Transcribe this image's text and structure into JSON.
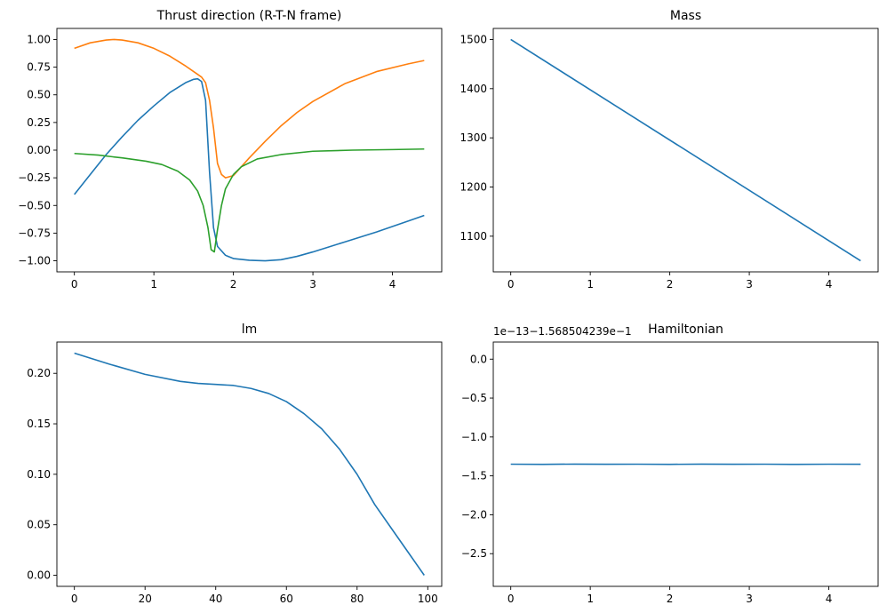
{
  "figure": {
    "colors": {
      "c0": "#1f77b4",
      "c1": "#ff7f0e",
      "c2": "#2ca02c"
    }
  },
  "chart_data": [
    {
      "type": "line",
      "title": "Thrust direction (R-T-N frame)",
      "xlim": [
        -0.22,
        4.62
      ],
      "ylim": [
        -1.1,
        1.1
      ],
      "xticks": [
        0,
        1,
        2,
        3,
        4
      ],
      "xtick_labels": [
        "0",
        "1",
        "2",
        "3",
        "4"
      ],
      "yticks": [
        -1.0,
        -0.75,
        -0.5,
        -0.25,
        0.0,
        0.25,
        0.5,
        0.75,
        1.0
      ],
      "ytick_labels": [
        "−1.00",
        "−0.75",
        "−0.50",
        "−0.25",
        "0.00",
        "0.25",
        "0.50",
        "0.75",
        "1.00"
      ],
      "series": [
        {
          "color": "#1f77b4",
          "x": [
            0,
            0.2,
            0.4,
            0.6,
            0.8,
            1.0,
            1.2,
            1.4,
            1.5,
            1.55,
            1.6,
            1.65,
            1.7,
            1.75,
            1.8,
            1.9,
            2.0,
            2.2,
            2.4,
            2.6,
            2.8,
            3.0,
            3.4,
            3.8,
            4.2,
            4.4
          ],
          "y": [
            -0.4,
            -0.22,
            -0.04,
            0.12,
            0.27,
            0.4,
            0.52,
            0.61,
            0.64,
            0.645,
            0.62,
            0.45,
            -0.2,
            -0.7,
            -0.87,
            -0.95,
            -0.98,
            -0.995,
            -1.0,
            -0.99,
            -0.96,
            -0.92,
            -0.83,
            -0.74,
            -0.64,
            -0.59
          ]
        },
        {
          "color": "#ff7f0e",
          "x": [
            0,
            0.2,
            0.4,
            0.5,
            0.6,
            0.8,
            1.0,
            1.2,
            1.4,
            1.5,
            1.6,
            1.65,
            1.7,
            1.75,
            1.8,
            1.85,
            1.9,
            2.0,
            2.2,
            2.4,
            2.6,
            2.8,
            3.0,
            3.4,
            3.8,
            4.2,
            4.4
          ],
          "y": [
            0.92,
            0.97,
            0.995,
            1.0,
            0.995,
            0.97,
            0.92,
            0.85,
            0.76,
            0.71,
            0.66,
            0.61,
            0.45,
            0.2,
            -0.12,
            -0.22,
            -0.25,
            -0.23,
            -0.07,
            0.08,
            0.22,
            0.34,
            0.44,
            0.6,
            0.71,
            0.78,
            0.81
          ]
        },
        {
          "color": "#2ca02c",
          "x": [
            0,
            0.3,
            0.6,
            0.9,
            1.1,
            1.3,
            1.45,
            1.55,
            1.62,
            1.68,
            1.72,
            1.76,
            1.8,
            1.85,
            1.9,
            2.0,
            2.1,
            2.3,
            2.6,
            3.0,
            3.5,
            4.0,
            4.4
          ],
          "y": [
            -0.03,
            -0.045,
            -0.07,
            -0.1,
            -0.13,
            -0.19,
            -0.27,
            -0.37,
            -0.5,
            -0.7,
            -0.9,
            -0.92,
            -0.72,
            -0.5,
            -0.35,
            -0.22,
            -0.15,
            -0.08,
            -0.04,
            -0.01,
            0.0,
            0.005,
            0.01
          ]
        }
      ]
    },
    {
      "type": "line",
      "title": "Mass",
      "xlim": [
        -0.22,
        4.62
      ],
      "ylim": [
        1027.5,
        1522.5
      ],
      "xticks": [
        0,
        1,
        2,
        3,
        4
      ],
      "xtick_labels": [
        "0",
        "1",
        "2",
        "3",
        "4"
      ],
      "yticks": [
        1100,
        1200,
        1300,
        1400,
        1500
      ],
      "ytick_labels": [
        "1100",
        "1200",
        "1300",
        "1400",
        "1500"
      ],
      "series": [
        {
          "color": "#1f77b4",
          "x": [
            0,
            4.4
          ],
          "y": [
            1500,
            1050
          ]
        }
      ]
    },
    {
      "type": "line",
      "title": "lm",
      "xlim": [
        -4.95,
        103.95
      ],
      "ylim": [
        -0.011,
        0.231
      ],
      "xticks": [
        0,
        20,
        40,
        60,
        80,
        100
      ],
      "xtick_labels": [
        "0",
        "20",
        "40",
        "60",
        "80",
        "100"
      ],
      "yticks": [
        0.0,
        0.05,
        0.1,
        0.15,
        0.2
      ],
      "ytick_labels": [
        "0.00",
        "0.05",
        "0.10",
        "0.15",
        "0.20"
      ],
      "series": [
        {
          "color": "#1f77b4",
          "x": [
            0,
            10,
            20,
            30,
            35,
            40,
            45,
            50,
            55,
            60,
            65,
            70,
            75,
            80,
            85,
            90,
            95,
            99
          ],
          "y": [
            0.22,
            0.209,
            0.199,
            0.192,
            0.19,
            0.189,
            0.188,
            0.185,
            0.18,
            0.172,
            0.16,
            0.145,
            0.125,
            0.1,
            0.07,
            0.045,
            0.02,
            0.0
          ]
        }
      ]
    },
    {
      "type": "line",
      "title": "Hamiltonian",
      "offset_text": "1e−13−1.568504239e−1",
      "xlim": [
        -0.22,
        4.62
      ],
      "ylim": [
        -2.92,
        0.22
      ],
      "xticks": [
        0,
        1,
        2,
        3,
        4
      ],
      "xtick_labels": [
        "0",
        "1",
        "2",
        "3",
        "4"
      ],
      "yticks": [
        -2.5,
        -2.0,
        -1.5,
        -1.0,
        -0.5,
        0.0
      ],
      "ytick_labels": [
        "−2.5",
        "−2.0",
        "−1.5",
        "−1.0",
        "−0.5",
        "0.0"
      ],
      "series": [
        {
          "color": "#1f77b4",
          "x": [
            0,
            0.4,
            0.8,
            1.2,
            1.6,
            2.0,
            2.4,
            2.8,
            3.2,
            3.6,
            4.0,
            4.4
          ],
          "y": [
            -1.35,
            -1.352,
            -1.349,
            -1.351,
            -1.35,
            -1.352,
            -1.349,
            -1.351,
            -1.35,
            -1.352,
            -1.35,
            -1.351
          ]
        }
      ]
    }
  ]
}
